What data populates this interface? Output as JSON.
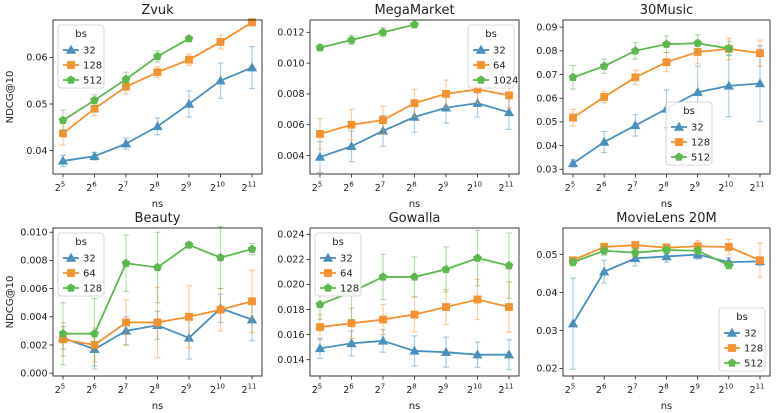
{
  "chart_data": [
    {
      "type": "line",
      "title": "Zvuk",
      "xlabel": "ns",
      "ylabel": "NDCG@10",
      "x_exponents": [
        "5",
        "6",
        "7",
        "8",
        "9",
        "10",
        "11"
      ],
      "x_base": "2",
      "ylim": [
        0.035,
        0.068
      ],
      "yticks": [
        "0.04",
        "0.05",
        "0.06"
      ],
      "ytick_values": [
        0.04,
        0.05,
        0.06
      ],
      "legend_title": "bs",
      "legend_loc": "top-left",
      "series": [
        {
          "name": "32",
          "color": "#4a90bf",
          "marker": "triangle",
          "values": [
            0.0378,
            0.0388,
            0.0415,
            0.0452,
            0.05,
            0.055,
            0.0578
          ],
          "errors": [
            0.0012,
            0.0008,
            0.0012,
            0.0018,
            0.0028,
            0.0038,
            0.0045
          ]
        },
        {
          "name": "128",
          "color": "#f5922f",
          "marker": "square",
          "values": [
            0.0437,
            0.049,
            0.0537,
            0.0568,
            0.0595,
            0.0633,
            0.0675
          ],
          "errors": [
            0.0025,
            0.0015,
            0.0015,
            0.0012,
            0.0012,
            0.0015,
            0.0008
          ]
        },
        {
          "name": "512",
          "color": "#5db84f",
          "marker": "pentagon",
          "values": [
            0.0465,
            0.0508,
            0.0553,
            0.0602,
            0.064,
            null,
            null
          ],
          "errors": [
            0.0022,
            0.0012,
            0.0015,
            0.0012,
            0.0005,
            null,
            null
          ]
        }
      ]
    },
    {
      "type": "line",
      "title": "MegaMarket",
      "xlabel": "ns",
      "ylabel": "",
      "x_exponents": [
        "5",
        "6",
        "7",
        "8",
        "9",
        "10",
        "11"
      ],
      "x_base": "2",
      "ylim": [
        0.0028,
        0.0128
      ],
      "yticks": [
        "0.004",
        "0.006",
        "0.008",
        "0.010",
        "0.012"
      ],
      "ytick_values": [
        0.004,
        0.006,
        0.008,
        0.01,
        0.012
      ],
      "legend_title": "bs",
      "legend_loc": "top-right",
      "series": [
        {
          "name": "32",
          "color": "#4a90bf",
          "marker": "triangle",
          "values": [
            0.0039,
            0.0046,
            0.0056,
            0.0065,
            0.0071,
            0.0074,
            0.0068
          ],
          "errors": [
            0.001,
            0.001,
            0.001,
            0.001,
            0.001,
            0.0009,
            0.0011
          ]
        },
        {
          "name": "64",
          "color": "#f5922f",
          "marker": "square",
          "values": [
            0.0054,
            0.006,
            0.0063,
            0.0074,
            0.008,
            0.0083,
            0.0079
          ],
          "errors": [
            0.001,
            0.001,
            0.0009,
            0.0009,
            0.0009,
            0.0009,
            0.0008
          ]
        },
        {
          "name": "1024",
          "color": "#5db84f",
          "marker": "pentagon",
          "values": [
            0.011,
            0.0115,
            0.012,
            0.0125,
            null,
            null,
            null
          ],
          "errors": [
            0.0002,
            0.0003,
            0.0003,
            0.0001,
            null,
            null,
            null
          ]
        }
      ]
    },
    {
      "type": "line",
      "title": "30Music",
      "xlabel": "ns",
      "ylabel": "",
      "x_exponents": [
        "5",
        "6",
        "7",
        "8",
        "9",
        "10",
        "11"
      ],
      "x_base": "2",
      "ylim": [
        0.028,
        0.093
      ],
      "yticks": [
        "0.03",
        "0.04",
        "0.05",
        "0.06",
        "0.07",
        "0.08",
        "0.09"
      ],
      "ytick_values": [
        0.03,
        0.04,
        0.05,
        0.06,
        0.07,
        0.08,
        0.09
      ],
      "legend_title": "bs",
      "legend_loc": "center-right",
      "series": [
        {
          "name": "32",
          "color": "#4a90bf",
          "marker": "triangle",
          "values": [
            0.0325,
            0.0415,
            0.0485,
            0.0555,
            0.0625,
            0.0652,
            0.0662
          ],
          "errors": [
            0.0015,
            0.0045,
            0.0045,
            0.008,
            0.011,
            0.013,
            0.016
          ]
        },
        {
          "name": "128",
          "color": "#f5922f",
          "marker": "square",
          "values": [
            0.0518,
            0.0605,
            0.0688,
            0.0752,
            0.0795,
            0.0808,
            0.079
          ],
          "errors": [
            0.0035,
            0.0025,
            0.003,
            0.004,
            0.005,
            0.0045,
            0.0055
          ]
        },
        {
          "name": "512",
          "color": "#5db84f",
          "marker": "pentagon",
          "values": [
            0.0688,
            0.0735,
            0.08,
            0.0828,
            0.0832,
            0.081,
            null
          ],
          "errors": [
            0.005,
            0.003,
            0.0035,
            0.0035,
            0.0035,
            0.003,
            null
          ]
        }
      ]
    },
    {
      "type": "line",
      "title": "Beauty",
      "xlabel": "ns",
      "ylabel": "NDCG@10",
      "x_exponents": [
        "5",
        "6",
        "7",
        "8",
        "9",
        "10",
        "11"
      ],
      "x_base": "2",
      "ylim": [
        -0.0002,
        0.0103
      ],
      "yticks": [
        "0.000",
        "0.002",
        "0.004",
        "0.006",
        "0.008",
        "0.010"
      ],
      "ytick_values": [
        0.0,
        0.002,
        0.004,
        0.006,
        0.008,
        0.01
      ],
      "legend_title": "bs",
      "legend_loc": "top-left",
      "series": [
        {
          "name": "32",
          "color": "#4a90bf",
          "marker": "triangle",
          "values": [
            0.0025,
            0.0017,
            0.003,
            0.0034,
            0.0025,
            0.0046,
            0.0038
          ],
          "errors": [
            0.0008,
            0.0012,
            0.001,
            0.001,
            0.0015,
            0.001,
            0.0015
          ]
        },
        {
          "name": "64",
          "color": "#f5922f",
          "marker": "square",
          "values": [
            0.0024,
            0.002,
            0.0036,
            0.0036,
            0.004,
            0.0045,
            0.0051
          ],
          "errors": [
            0.0012,
            0.0012,
            0.0016,
            0.0025,
            0.0022,
            0.0015,
            0.0022
          ]
        },
        {
          "name": "128",
          "color": "#5db84f",
          "marker": "pentagon",
          "values": [
            0.0028,
            0.0028,
            0.0078,
            0.0075,
            0.0091,
            0.0082,
            0.0088
          ],
          "errors": [
            0.0022,
            0.0025,
            0.002,
            0.0025,
            0.0002,
            0.0022,
            0.0004
          ]
        }
      ]
    },
    {
      "type": "line",
      "title": "Gowalla",
      "xlabel": "ns",
      "ylabel": "",
      "x_exponents": [
        "5",
        "6",
        "7",
        "8",
        "9",
        "10",
        "11"
      ],
      "x_base": "2",
      "ylim": [
        0.0127,
        0.0245
      ],
      "yticks": [
        "0.014",
        "0.016",
        "0.018",
        "0.020",
        "0.022",
        "0.024"
      ],
      "ytick_values": [
        0.014,
        0.016,
        0.018,
        0.02,
        0.022,
        0.024
      ],
      "legend_title": "bs",
      "legend_loc": "top-left",
      "series": [
        {
          "name": "32",
          "color": "#4a90bf",
          "marker": "triangle",
          "values": [
            0.0149,
            0.0153,
            0.0155,
            0.0147,
            0.0146,
            0.0144,
            0.0144
          ],
          "errors": [
            0.0008,
            0.001,
            0.0009,
            0.0012,
            0.0012,
            0.001,
            0.0012
          ]
        },
        {
          "name": "64",
          "color": "#f5922f",
          "marker": "square",
          "values": [
            0.0166,
            0.0169,
            0.0172,
            0.0176,
            0.0182,
            0.0188,
            0.0182
          ],
          "errors": [
            0.001,
            0.0012,
            0.0012,
            0.0014,
            0.0014,
            0.0016,
            0.002
          ]
        },
        {
          "name": "128",
          "color": "#5db84f",
          "marker": "pentagon",
          "values": [
            0.0184,
            0.0194,
            0.0206,
            0.0206,
            0.0212,
            0.0221,
            0.0215
          ],
          "errors": [
            0.0012,
            0.0022,
            0.0018,
            0.0016,
            0.0018,
            0.0022,
            0.0026
          ]
        }
      ]
    },
    {
      "type": "line",
      "title": "MovieLens 20M",
      "xlabel": "ns",
      "ylabel": "",
      "x_exponents": [
        "5",
        "6",
        "7",
        "8",
        "9",
        "10",
        "11"
      ],
      "x_base": "2",
      "ylim": [
        0.018,
        0.057
      ],
      "yticks": [
        "0.02",
        "0.03",
        "0.04",
        "0.05"
      ],
      "ytick_values": [
        0.02,
        0.03,
        0.04,
        0.05
      ],
      "legend_title": "bs",
      "legend_loc": "bottom-right",
      "series": [
        {
          "name": "32",
          "color": "#4a90bf",
          "marker": "triangle",
          "values": [
            0.0318,
            0.0455,
            0.049,
            0.0495,
            0.05,
            0.048,
            0.0482
          ],
          "errors": [
            0.012,
            0.003,
            0.002,
            0.0015,
            0.0012,
            0.0012,
            0.001
          ]
        },
        {
          "name": "128",
          "color": "#f5922f",
          "marker": "square",
          "values": [
            0.0485,
            0.052,
            0.0525,
            0.0518,
            0.0522,
            0.052,
            0.0485
          ],
          "errors": [
            0.0008,
            0.001,
            0.001,
            0.001,
            0.0015,
            0.002,
            0.0045
          ]
        },
        {
          "name": "512",
          "color": "#5db84f",
          "marker": "pentagon",
          "values": [
            0.048,
            0.051,
            0.0505,
            0.0512,
            0.051,
            0.0472,
            null
          ],
          "errors": [
            0.001,
            0.0012,
            0.0012,
            0.001,
            0.001,
            0.001,
            null
          ]
        }
      ]
    }
  ]
}
